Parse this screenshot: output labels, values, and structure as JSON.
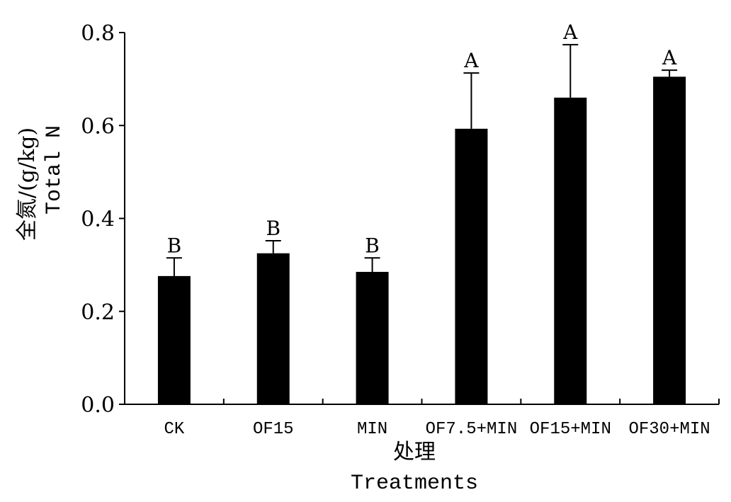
{
  "chart_data": {
    "type": "bar",
    "title": "",
    "xlabel_cn": "处理",
    "xlabel": "Treatments",
    "ylabel_cn": "全氮/(g/kg)",
    "ylabel": "Total N",
    "ylim": [
      0,
      0.8
    ],
    "yticks": [
      "0.0",
      "0.2",
      "0.4",
      "0.6",
      "0.8"
    ],
    "grid": false,
    "categories": [
      "CK",
      "OF15",
      "MIN",
      "OF7.5+MIN",
      "OF15+MIN",
      "OF30+MIN"
    ],
    "values": [
      0.276,
      0.325,
      0.285,
      0.593,
      0.66,
      0.705
    ],
    "error_upper": [
      0.315,
      0.352,
      0.315,
      0.713,
      0.774,
      0.719
    ],
    "significance": [
      "B",
      "B",
      "B",
      "A",
      "A",
      "A"
    ],
    "bar_color": "#000000"
  }
}
